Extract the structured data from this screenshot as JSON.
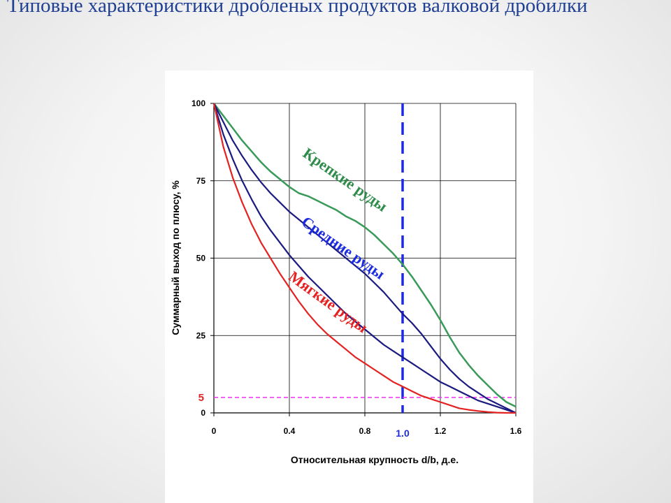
{
  "slide": {
    "title": "Типовые характеристики дробленых продуктов валковой дробилки"
  },
  "chart_data": {
    "type": "line",
    "xlabel": "Относительная крупность d/b, д.е.",
    "ylabel": "Суммарный выход по плюсу, %",
    "xlim": [
      0,
      1.6
    ],
    "ylim": [
      0,
      100
    ],
    "xticks": [
      "0",
      "0.4",
      "0.8",
      "1.2",
      "1.6"
    ],
    "yticks": [
      "0",
      "25",
      "50",
      "75",
      "100"
    ],
    "grid": true,
    "series": [
      {
        "name": "Крепкие руды",
        "color": "#3a9a5a",
        "x": [
          0,
          0.05,
          0.1,
          0.15,
          0.2,
          0.25,
          0.3,
          0.35,
          0.4,
          0.45,
          0.5,
          0.55,
          0.6,
          0.65,
          0.7,
          0.75,
          0.8,
          0.85,
          0.9,
          0.95,
          1.0,
          1.05,
          1.1,
          1.15,
          1.2,
          1.25,
          1.3,
          1.35,
          1.4,
          1.45,
          1.5,
          1.55,
          1.6
        ],
        "y": [
          100,
          96,
          92,
          88,
          84.5,
          81,
          78,
          75.5,
          73,
          71,
          70,
          68.5,
          67,
          65.5,
          63.5,
          62,
          60,
          57.5,
          54.5,
          51.5,
          48,
          44,
          39.5,
          35,
          30,
          24.5,
          19.5,
          15.5,
          12,
          9,
          6,
          3.5,
          2
        ]
      },
      {
        "name": "",
        "color": "#1a1a80",
        "x": [
          0,
          0.05,
          0.1,
          0.15,
          0.2,
          0.25,
          0.3,
          0.35,
          0.4,
          0.45,
          0.5,
          0.55,
          0.6,
          0.65,
          0.7,
          0.75,
          0.8,
          0.85,
          0.9,
          0.95,
          1.0,
          1.05,
          1.1,
          1.15,
          1.2,
          1.25,
          1.3,
          1.35,
          1.4,
          1.45,
          1.5,
          1.55,
          1.6
        ],
        "y": [
          100,
          94,
          88,
          83,
          78.5,
          74.5,
          71,
          68,
          65,
          62.5,
          60,
          57.5,
          55,
          52.5,
          50,
          47.5,
          45,
          42,
          39,
          35.5,
          32,
          29,
          25.5,
          21.5,
          17.5,
          14,
          11,
          8.5,
          6.5,
          4.5,
          3,
          1.5,
          0
        ]
      },
      {
        "name": "Средние руды",
        "color": "#1a1a80",
        "x": [
          0,
          0.05,
          0.1,
          0.15,
          0.2,
          0.25,
          0.3,
          0.35,
          0.4,
          0.45,
          0.5,
          0.55,
          0.6,
          0.65,
          0.7,
          0.75,
          0.8,
          0.85,
          0.9,
          0.95,
          1.0,
          1.05,
          1.1,
          1.15,
          1.2,
          1.25,
          1.3,
          1.35,
          1.4,
          1.45,
          1.5,
          1.55,
          1.6
        ],
        "y": [
          100,
          90,
          82,
          75,
          69,
          63.5,
          59,
          55,
          51,
          47.5,
          44,
          41,
          38,
          35,
          32,
          29.5,
          27,
          24.5,
          22,
          20,
          18,
          16,
          14,
          12,
          10,
          8.5,
          7,
          5.5,
          4,
          3,
          2,
          1,
          0
        ]
      },
      {
        "name": "Мягкие руды",
        "color": "#e52222",
        "x": [
          0,
          0.05,
          0.1,
          0.15,
          0.2,
          0.25,
          0.3,
          0.35,
          0.4,
          0.45,
          0.5,
          0.55,
          0.6,
          0.65,
          0.7,
          0.75,
          0.8,
          0.85,
          0.9,
          0.95,
          1.0,
          1.05,
          1.1,
          1.15,
          1.2,
          1.25,
          1.3,
          1.35,
          1.4,
          1.45,
          1.5,
          1.55,
          1.6
        ],
        "y": [
          100,
          86,
          76,
          68,
          61,
          55,
          50,
          45,
          40.5,
          36,
          32,
          28.5,
          25.5,
          23,
          20.5,
          18,
          16,
          14,
          12,
          10,
          8.5,
          7,
          5.5,
          4.5,
          3.5,
          2.5,
          1.5,
          1,
          0.6,
          0.3,
          0.1,
          0,
          0
        ]
      }
    ],
    "annotations": [
      {
        "type": "vline",
        "x": 1.0,
        "label": "1.0",
        "color": "#1c2be0"
      },
      {
        "type": "hline",
        "y": 5,
        "label": "5",
        "color": "#ee33ee",
        "label_color": "#e52222"
      }
    ]
  }
}
